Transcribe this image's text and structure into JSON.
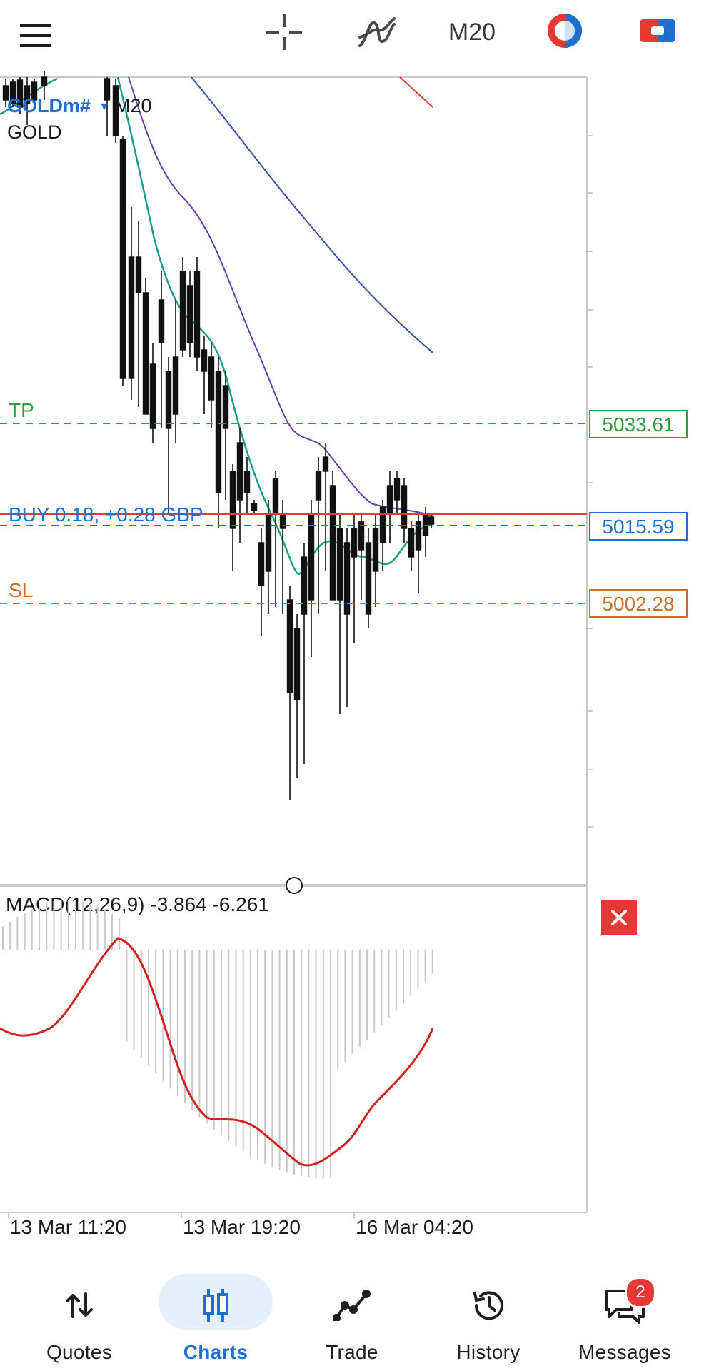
{
  "toolbar": {
    "menu_icon": "hamburger-menu-icon",
    "crosshair_icon": "crosshair-icon",
    "indicators_icon": "indicators-icon",
    "timeframe": "M20",
    "account_icon": "account-switch-icon",
    "trade_icon": "one-click-trade-icon"
  },
  "chart": {
    "symbol": "GOLDm#",
    "symbol_timeframe": "M20",
    "symbol_description": "GOLD",
    "tp_label": "TP",
    "tp_price": "5033.61",
    "position_label": "BUY 0.18,  +0.28 GBP",
    "bid_price": "5015.59",
    "sl_label": "SL",
    "sl_price": "5002.28",
    "colors": {
      "tp": "#2e9e3e",
      "sl": "#c8702a",
      "position": "#1e6fd0",
      "ma_fast": "#16a08a",
      "ma_mid": "#6a3fb3",
      "ma_slow": "#3a4fa8",
      "ma_red": "#e53935",
      "macd_signal": "#d51f1f"
    }
  },
  "macd": {
    "label": "MACD(12,26,9) -3.864 -6.261",
    "close_icon": "close-icon"
  },
  "time_axis": {
    "labels": [
      "13 Mar 11:20",
      "13 Mar 19:20",
      "16 Mar 04:20"
    ]
  },
  "nav": {
    "items": [
      {
        "label": "Quotes",
        "icon": "quotes-arrows-icon"
      },
      {
        "label": "Charts",
        "icon": "charts-candles-icon"
      },
      {
        "label": "Trade",
        "icon": "trade-line-icon"
      },
      {
        "label": "History",
        "icon": "history-clock-icon"
      },
      {
        "label": "Messages",
        "icon": "messages-chat-icon"
      }
    ],
    "messages_badge": "2"
  }
}
